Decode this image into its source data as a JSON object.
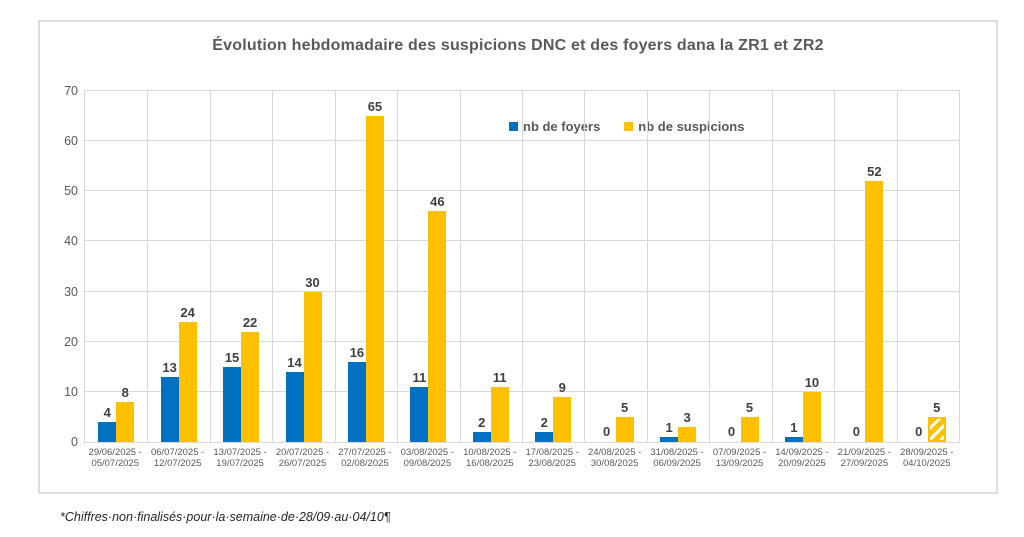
{
  "chart_data": {
    "type": "bar",
    "title": "Évolution hebdomadaire des suspicions DNC et des foyers dana la ZR1 et ZR2",
    "categories": [
      "29/06/2025 -\n05/07/2025",
      "06/07/2025 -\n12/07/2025",
      "13/07/2025 -\n19/07/2025",
      "20/07/2025 -\n26/07/2025",
      "27/07/2025 -\n02/08/2025",
      "03/08/2025 -\n09/08/2025",
      "10/08/2025 -\n16/08/2025",
      "17/08/2025 -\n23/08/2025",
      "24/08/2025 -\n30/08/2025",
      "31/08/2025 -\n06/09/2025",
      "07/09/2025 -\n13/09/2025",
      "14/09/2025 -\n20/09/2025",
      "21/09/2025 -\n27/09/2025",
      "28/09/2025 -\n04/10/2025"
    ],
    "series": [
      {
        "name": "nb de foyers",
        "color": "#0070C0",
        "values": [
          4,
          13,
          15,
          14,
          16,
          11,
          2,
          2,
          0,
          1,
          0,
          1,
          0,
          0
        ]
      },
      {
        "name": "nb de suspicions",
        "color": "#FFC000",
        "values": [
          8,
          24,
          22,
          30,
          65,
          46,
          11,
          9,
          5,
          3,
          5,
          10,
          52,
          5
        ]
      }
    ],
    "ylim": [
      0,
      70
    ],
    "ytick_step": 10,
    "grid": true,
    "legend_position": "inside-top-center",
    "last_suspicions_bar_hatched": true
  },
  "footnote": "*Chiffres·non·finalisés·pour·la·semaine·de·28/09·au·04/10¶",
  "colors": {
    "bar_foyers": "#0070C0",
    "bar_suspicions": "#FFC000",
    "gridline": "#d9d9d9",
    "frame_border": "#dedede",
    "axis_text": "#595959",
    "data_label_text": "#404040"
  }
}
